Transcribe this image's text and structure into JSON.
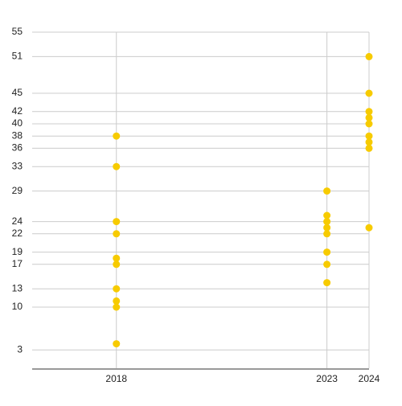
{
  "chart_data": {
    "type": "scatter",
    "x": [
      2018,
      2018,
      2018,
      2018,
      2018,
      2018,
      2018,
      2018,
      2018,
      2018,
      2023,
      2023,
      2023,
      2023,
      2023,
      2023,
      2023,
      2023,
      2024,
      2024,
      2024,
      2024,
      2024,
      2024,
      2024,
      2024,
      2024
    ],
    "series": [
      {
        "color": "#f7cb00",
        "values": [
          38,
          33,
          24,
          22,
          18,
          17,
          13,
          11,
          10,
          4,
          29,
          25,
          24,
          23,
          22,
          19,
          17,
          14,
          51,
          45,
          42,
          41,
          40,
          38,
          37,
          36,
          23
        ]
      }
    ],
    "xlim": [
      2016,
      2024
    ],
    "xticks": [
      2018,
      2023,
      2024
    ],
    "ylim": [
      0,
      55
    ],
    "yticks": [
      3,
      10,
      13,
      17,
      19,
      22,
      24,
      29,
      33,
      36,
      38,
      40,
      42,
      45,
      51,
      55
    ],
    "grid": true
  }
}
